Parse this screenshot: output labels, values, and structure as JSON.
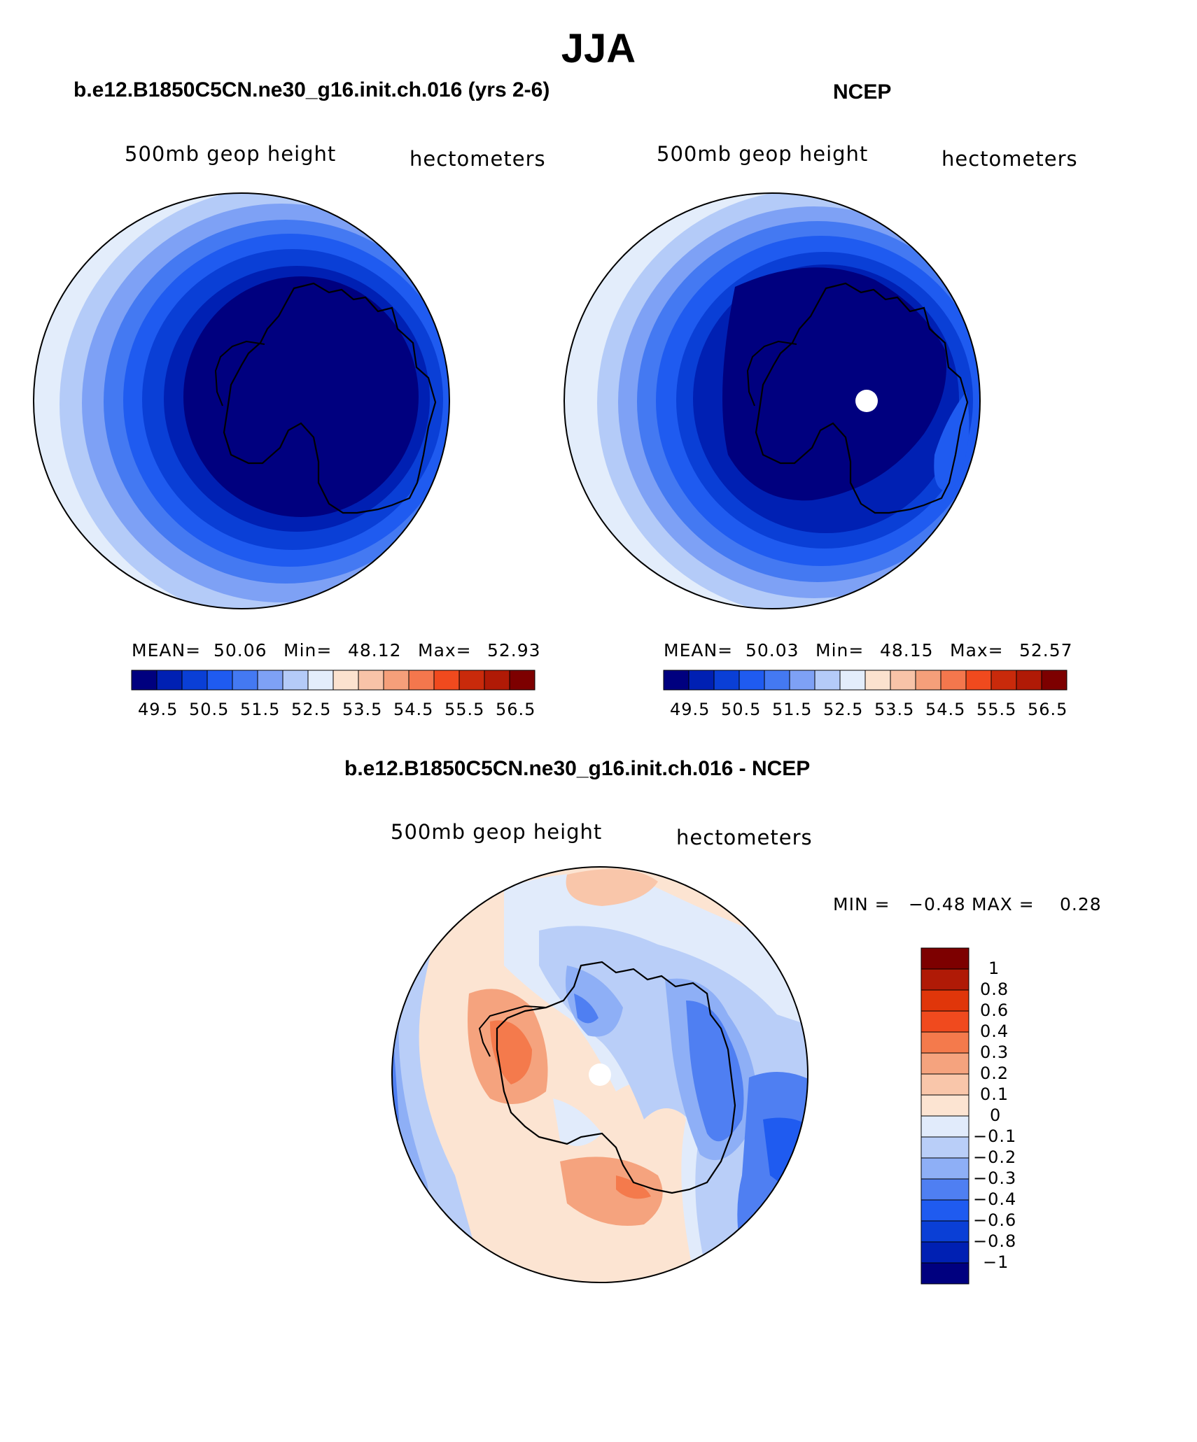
{
  "title": "JJA",
  "panels": [
    {
      "heading": "b.e12.B1850C5CN.ne30_g16.init.ch.016 (yrs 2-6)",
      "left_label": "500mb geop height",
      "right_label": "hectometers",
      "stats": {
        "mean_label": "MEAN=",
        "mean": "50.06",
        "min_label": "Min=",
        "min": "48.12",
        "max_label": "Max=",
        "max": "52.93"
      },
      "colorbar_ticks": [
        "49.5",
        "50.5",
        "51.5",
        "52.5",
        "53.5",
        "54.5",
        "55.5",
        "56.5"
      ]
    },
    {
      "heading": "NCEP",
      "left_label": "500mb geop height",
      "right_label": "hectometers",
      "stats": {
        "mean_label": "MEAN=",
        "mean": "50.03",
        "min_label": "Min=",
        "min": "48.15",
        "max_label": "Max=",
        "max": "52.57"
      },
      "colorbar_ticks": [
        "49.5",
        "50.5",
        "51.5",
        "52.5",
        "53.5",
        "54.5",
        "55.5",
        "56.5"
      ]
    }
  ],
  "diff_panel": {
    "heading": "b.e12.B1850C5CN.ne30_g16.init.ch.016 - NCEP",
    "left_label": "500mb geop height",
    "right_label": "hectometers",
    "minmax": {
      "min_label": "MIN =",
      "min": "−0.48",
      "max_label": "MAX =",
      "max": "0.28"
    },
    "colorbar_ticks": [
      "1",
      "0.8",
      "0.6",
      "0.4",
      "0.3",
      "0.2",
      "0.1",
      "0",
      "−0.1",
      "−0.2",
      "−0.3",
      "−0.4",
      "−0.6",
      "−0.8",
      "−1"
    ]
  },
  "abs_colors": [
    "#00007f",
    "#0020b3",
    "#0a3fd6",
    "#1f5bf0",
    "#4479f2",
    "#7ea1f5",
    "#b4cbf8",
    "#e3edfb",
    "#fbe2cf",
    "#f8c3a8",
    "#f59f7a",
    "#f4774d",
    "#f04a1e",
    "#c92a0b",
    "#b01a06",
    "#7d0000"
  ],
  "diff_colors": [
    "#7d0000",
    "#b01a06",
    "#e0360a",
    "#f04a1e",
    "#f47a4c",
    "#f5a37e",
    "#f9c6aa",
    "#fce4d2",
    "#e1ebfb",
    "#b9cef8",
    "#8eaff6",
    "#4f7ff2",
    "#1f5bf0",
    "#0a3fd6",
    "#0020b3",
    "#00007f"
  ]
}
